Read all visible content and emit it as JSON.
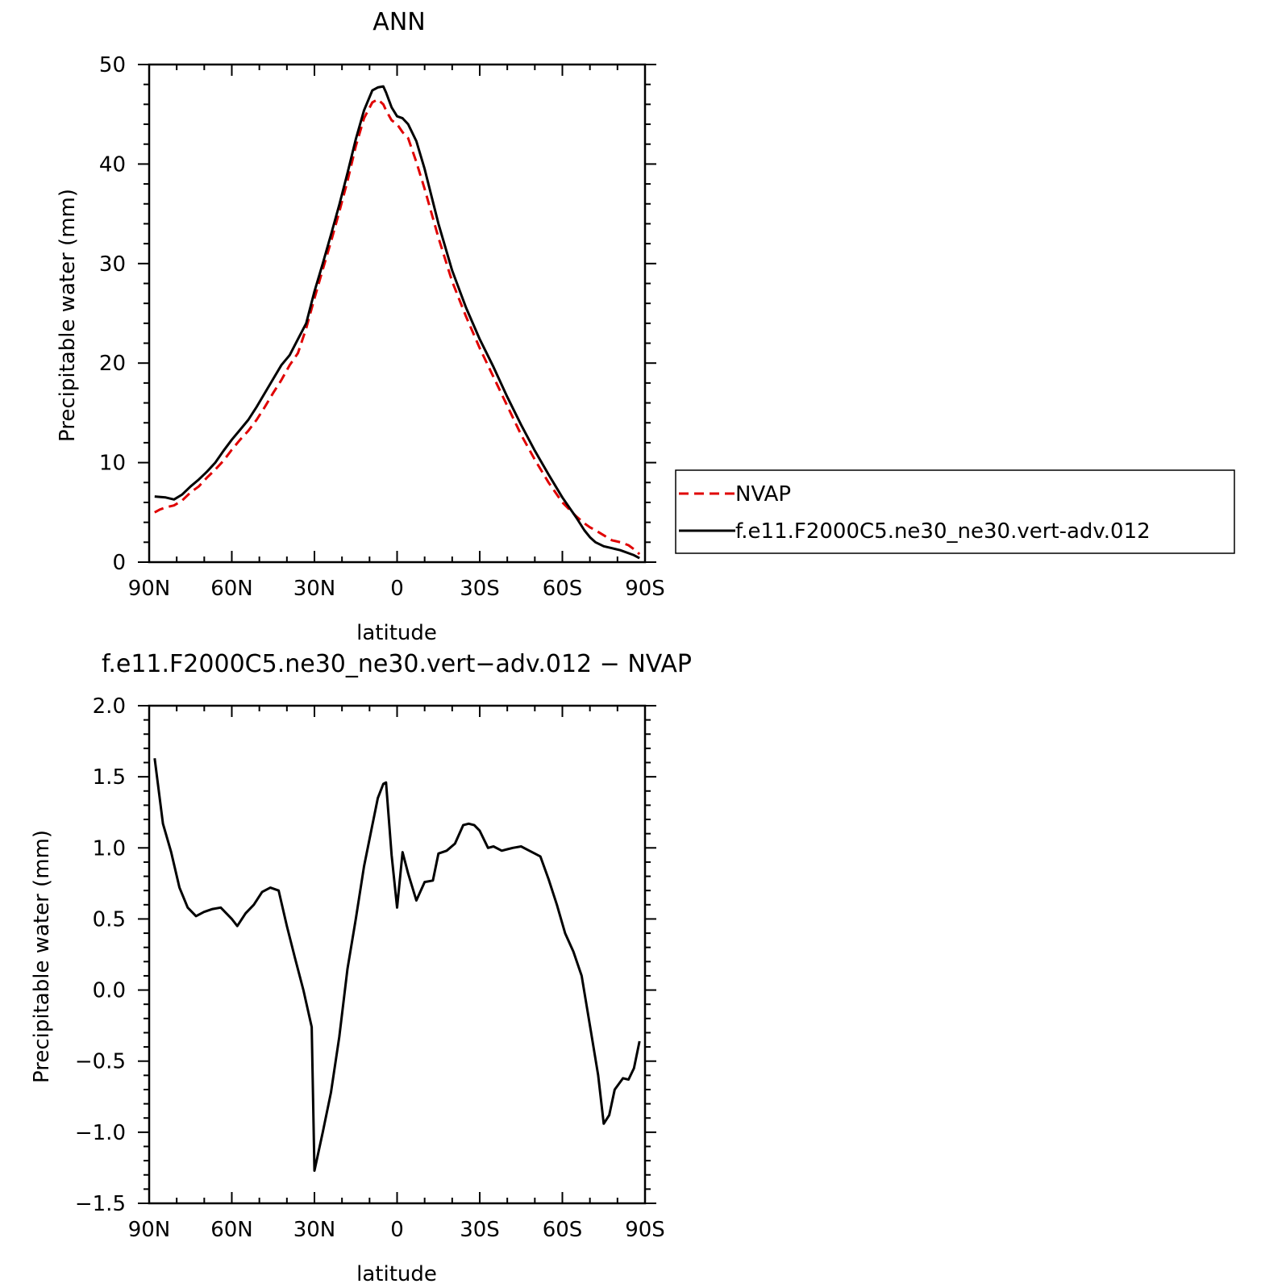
{
  "chart_data": [
    {
      "type": "line",
      "title": "ANN",
      "xlabel": "latitude",
      "ylabel": "Precipitable water (mm)",
      "xlim": [
        -90,
        90
      ],
      "ylim": [
        0,
        50
      ],
      "x_direction": "north-to-south",
      "xticks": [
        -90,
        -60,
        -30,
        0,
        30,
        60,
        90
      ],
      "xtick_labels": [
        "90N",
        "60N",
        "30N",
        "0",
        "30S",
        "60S",
        "90S"
      ],
      "yticks": [
        0,
        10,
        20,
        30,
        40,
        50
      ],
      "ytick_labels": [
        "0",
        "10",
        "20",
        "30",
        "40",
        "50"
      ],
      "legend_position": "right",
      "series": [
        {
          "name": "NVAP",
          "color": "#e00000",
          "dash": "dashed",
          "x": [
            -88,
            -86,
            -84,
            -81,
            -78,
            -75,
            -72,
            -69,
            -66,
            -63,
            -60,
            -57,
            -54,
            -51,
            -48,
            -45,
            -42,
            -39,
            -36,
            -33,
            -30,
            -27,
            -24,
            -21,
            -18,
            -15,
            -12,
            -9,
            -7,
            -5,
            -4,
            -2,
            0,
            2,
            4,
            7,
            10,
            15,
            20,
            25,
            30,
            35,
            40,
            45,
            50,
            55,
            60,
            65,
            68,
            70,
            72,
            75,
            78,
            81,
            84,
            86,
            88
          ],
          "y": [
            5.0,
            5.3,
            5.5,
            5.7,
            6.2,
            7.0,
            7.6,
            8.5,
            9.3,
            10.2,
            11.3,
            12.3,
            13.2,
            14.3,
            15.6,
            17.0,
            18.3,
            19.8,
            21.0,
            23.5,
            26.5,
            29.4,
            32.2,
            35.2,
            38.3,
            41.8,
            44.6,
            46.2,
            46.5,
            46.0,
            45.4,
            44.4,
            44.0,
            43.2,
            42.6,
            40.2,
            37.5,
            32.6,
            28.2,
            24.7,
            21.5,
            18.6,
            15.7,
            12.8,
            10.3,
            8.0,
            6.0,
            4.6,
            3.9,
            3.5,
            3.2,
            2.7,
            2.2,
            2.0,
            1.7,
            1.3,
            0.8
          ]
        },
        {
          "name": "f.e11.F2000C5.ne30_ne30.vert-adv.012",
          "color": "#000000",
          "dash": "solid",
          "x": [
            -88,
            -84,
            -81,
            -78,
            -75,
            -72,
            -69,
            -66,
            -63,
            -60,
            -57,
            -54,
            -51,
            -48,
            -45,
            -42,
            -39,
            -36,
            -33,
            -30,
            -27,
            -24,
            -21,
            -18,
            -15,
            -12,
            -9,
            -7,
            -5,
            -4,
            -2,
            0,
            2,
            4,
            7,
            10,
            15,
            20,
            25,
            30,
            35,
            40,
            45,
            50,
            55,
            60,
            65,
            68,
            70,
            72,
            75,
            78,
            81,
            84,
            86,
            88
          ],
          "y": [
            6.6,
            6.5,
            6.3,
            6.8,
            7.6,
            8.3,
            9.1,
            10.0,
            11.2,
            12.3,
            13.3,
            14.3,
            15.6,
            17.0,
            18.4,
            19.8,
            20.8,
            22.4,
            24.0,
            27.2,
            30.0,
            32.9,
            35.9,
            39.1,
            42.5,
            45.4,
            47.4,
            47.7,
            47.8,
            47.2,
            45.7,
            44.8,
            44.6,
            44.0,
            42.3,
            39.5,
            34.0,
            29.3,
            25.6,
            22.4,
            19.6,
            16.6,
            13.8,
            11.2,
            8.8,
            6.5,
            4.5,
            3.2,
            2.5,
            2.0,
            1.6,
            1.4,
            1.2,
            0.9,
            0.7,
            0.4
          ]
        }
      ]
    },
    {
      "type": "line",
      "title": "f.e11.F2000C5.ne30_ne30.vert−adv.012 − NVAP",
      "xlabel": "latitude",
      "ylabel": "Precipitable water (mm)",
      "xlim": [
        -90,
        90
      ],
      "ylim": [
        -1.5,
        2.0
      ],
      "x_direction": "north-to-south",
      "xticks": [
        -90,
        -60,
        -30,
        0,
        30,
        60,
        90
      ],
      "xtick_labels": [
        "90N",
        "60N",
        "30N",
        "0",
        "30S",
        "60S",
        "90S"
      ],
      "yticks": [
        -1.5,
        -1.0,
        -0.5,
        0.0,
        0.5,
        1.0,
        1.5,
        2.0
      ],
      "ytick_labels": [
        "−1.5",
        "−1.0",
        "−0.5",
        "0.0",
        "0.5",
        "1.0",
        "1.5",
        "2.0"
      ],
      "series": [
        {
          "color": "#000000",
          "dash": "solid",
          "x": [
            -88,
            -85,
            -82,
            -79,
            -76,
            -73,
            -70,
            -67,
            -64,
            -61,
            -60,
            -58,
            -55,
            -52,
            -49,
            -46,
            -43,
            -40,
            -37,
            -34,
            -31,
            -30,
            -27,
            -24,
            -21,
            -18,
            -15,
            -12,
            -9,
            -7,
            -5,
            -4,
            -2,
            0,
            2,
            4,
            7,
            10,
            13,
            15,
            18,
            21,
            24,
            26,
            28,
            30,
            33,
            35,
            38,
            40,
            42,
            45,
            48,
            50,
            52,
            55,
            58,
            61,
            64,
            67,
            70,
            73,
            75,
            77,
            79,
            82,
            84,
            86,
            88
          ],
          "y": [
            1.63,
            1.17,
            0.97,
            0.72,
            0.58,
            0.52,
            0.55,
            0.57,
            0.58,
            0.52,
            0.5,
            0.45,
            0.54,
            0.6,
            0.69,
            0.72,
            0.7,
            0.45,
            0.22,
            0.0,
            -0.26,
            -1.27,
            -1.0,
            -0.72,
            -0.33,
            0.15,
            0.5,
            0.87,
            1.16,
            1.35,
            1.45,
            1.46,
            0.95,
            0.58,
            0.97,
            0.82,
            0.63,
            0.76,
            0.77,
            0.96,
            0.98,
            1.03,
            1.16,
            1.17,
            1.16,
            1.12,
            1.0,
            1.01,
            0.98,
            0.99,
            1.0,
            1.01,
            0.98,
            0.96,
            0.94,
            0.78,
            0.6,
            0.4,
            0.27,
            0.1,
            -0.25,
            -0.6,
            -0.94,
            -0.88,
            -0.7,
            -0.62,
            -0.63,
            -0.55,
            -0.36
          ]
        }
      ]
    }
  ]
}
